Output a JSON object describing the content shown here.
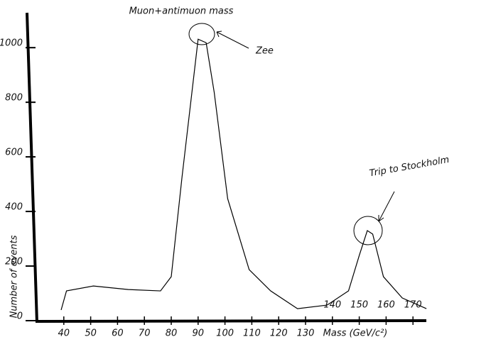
{
  "chart_data": {
    "type": "line",
    "title": "Muon+antimuon mass",
    "x_label": "Mass (GeV/c²)",
    "y_label": "Number of events",
    "annotations": [
      "Zee",
      "Trip to Stockholm"
    ],
    "x": [
      39,
      41,
      51,
      64,
      76,
      80,
      84,
      88,
      90,
      93,
      96,
      101,
      109,
      117,
      127,
      138,
      146,
      150,
      153,
      155,
      159,
      166,
      175
    ],
    "values": [
      39,
      109,
      127,
      114,
      109,
      161,
      525,
      862,
      1031,
      1018,
      836,
      447,
      187,
      109,
      44,
      57,
      109,
      239,
      330,
      317,
      161,
      83,
      44
    ],
    "color": "#000000",
    "xlim": [
      30,
      180
    ],
    "ylim": [
      0,
      1120
    ],
    "xticks": [
      40,
      50,
      60,
      70,
      80,
      90,
      100,
      110,
      120,
      130,
      140,
      150,
      160,
      170
    ],
    "yticks": [
      0,
      200,
      400,
      600,
      800,
      1000
    ],
    "grid": false
  }
}
